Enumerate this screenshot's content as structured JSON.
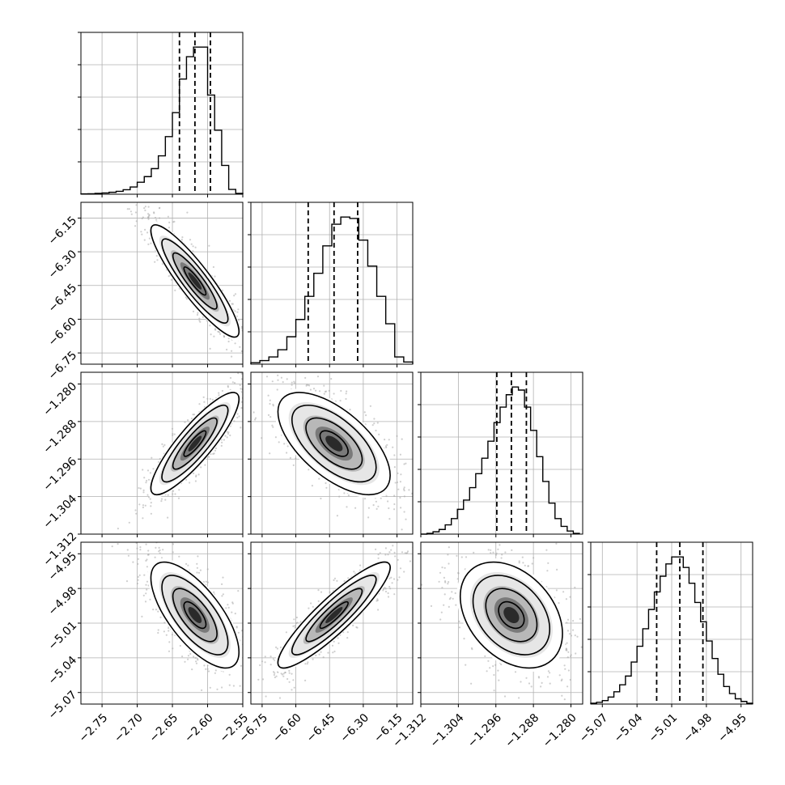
{
  "chart_data": {
    "type": "corner",
    "parameters": [
      {
        "range": [
          -2.78,
          -2.55
        ],
        "ticks": [
          "−2.75",
          "−2.70",
          "−2.65",
          "−2.60",
          "−2.55"
        ],
        "tick_values": [
          -2.75,
          -2.7,
          -2.65,
          -2.6,
          -2.55
        ],
        "quantiles": [
          -2.64,
          -2.618,
          -2.596
        ],
        "hist": {
          "edges": [
            -2.78,
            -2.77,
            -2.76,
            -2.75,
            -2.74,
            -2.73,
            -2.72,
            -2.71,
            -2.7,
            -2.69,
            -2.68,
            -2.67,
            -2.66,
            -2.65,
            -2.64,
            -2.63,
            -2.62,
            -2.61,
            -2.6,
            -2.59,
            -2.58,
            -2.57,
            -2.56,
            -2.55
          ],
          "values": [
            0.2,
            0.3,
            0.5,
            0.8,
            1.2,
            1.8,
            2.8,
            4.5,
            7.5,
            11,
            16,
            24,
            36,
            51,
            72,
            86,
            92,
            92,
            62,
            40,
            18,
            3,
            0.5
          ]
        }
      },
      {
        "range": [
          -6.8,
          -6.08
        ],
        "ticks": [
          "−6.75",
          "−6.60",
          "−6.45",
          "−6.30",
          "−6.15"
        ],
        "tick_values": [
          -6.75,
          -6.6,
          -6.45,
          -6.3,
          -6.15
        ],
        "quantiles": [
          -6.545,
          -6.43,
          -6.325
        ],
        "hist": {
          "edges": [
            -6.8,
            -6.76,
            -6.72,
            -6.68,
            -6.64,
            -6.6,
            -6.56,
            -6.52,
            -6.48,
            -6.44,
            -6.4,
            -6.36,
            -6.32,
            -6.28,
            -6.24,
            -6.2,
            -6.16,
            -6.12,
            -6.08
          ],
          "values": [
            1,
            2.5,
            5,
            10,
            19,
            31,
            47,
            63,
            82,
            97,
            102,
            101,
            86,
            68,
            47,
            28,
            5,
            1.5
          ]
        }
      },
      {
        "range": [
          -1.312,
          -1.2775
        ],
        "ticks": [
          "−1.312",
          "−1.304",
          "−1.296",
          "−1.288",
          "−1.280"
        ],
        "tick_values": [
          -1.312,
          -1.304,
          -1.296,
          -1.288,
          -1.28
        ],
        "quantiles": [
          -1.2958,
          -1.2927,
          -1.2895
        ],
        "hist": {
          "edges": [
            -1.312,
            -1.3107,
            -1.3094,
            -1.3081,
            -1.3068,
            -1.3055,
            -1.3042,
            -1.3029,
            -1.3016,
            -1.3003,
            -1.299,
            -1.2977,
            -1.2964,
            -1.2951,
            -1.2938,
            -1.2925,
            -1.2912,
            -1.2899,
            -1.2886,
            -1.2873,
            -1.286,
            -1.2847,
            -1.2834,
            -1.2821,
            -1.2808,
            -1.2795,
            -1.2782
          ],
          "values": [
            0,
            0.5,
            1.5,
            3,
            6,
            10,
            16,
            22,
            30,
            39,
            49,
            60,
            72,
            82,
            90,
            95,
            93,
            82,
            67,
            50,
            34,
            20,
            10,
            5,
            2,
            0.5
          ]
        }
      },
      {
        "range": [
          -5.08,
          -4.94
        ],
        "ticks": [
          "−5.07",
          "−5.04",
          "−5.01",
          "−4.98",
          "−4.95"
        ],
        "tick_values": [
          -5.07,
          -5.04,
          -5.01,
          -4.98,
          -4.95
        ],
        "quantiles": [
          -5.023,
          -5.003,
          -4.983
        ],
        "hist": {
          "edges": [
            -5.08,
            -5.075,
            -5.07,
            -5.065,
            -5.06,
            -5.055,
            -5.05,
            -5.045,
            -5.04,
            -5.035,
            -5.03,
            -5.025,
            -5.02,
            -5.015,
            -5.01,
            -5.005,
            -5.0,
            -4.995,
            -4.99,
            -4.985,
            -4.98,
            -4.975,
            -4.97,
            -4.965,
            -4.96,
            -4.955,
            -4.95,
            -4.945,
            -4.94
          ],
          "values": [
            0.5,
            1,
            2,
            4,
            7,
            11,
            16,
            24,
            33,
            43,
            54,
            64,
            73,
            80,
            84,
            84,
            78,
            69,
            58,
            47,
            36,
            26,
            17,
            10,
            6,
            3,
            1.5,
            0.5
          ]
        }
      }
    ],
    "pairs": [
      {
        "row": 1,
        "col": 0,
        "rho": -0.9
      },
      {
        "row": 2,
        "col": 0,
        "rho": 0.87
      },
      {
        "row": 2,
        "col": 1,
        "rho": -0.62
      },
      {
        "row": 3,
        "col": 0,
        "rho": -0.7
      },
      {
        "row": 3,
        "col": 1,
        "rho": 0.9
      },
      {
        "row": 3,
        "col": 2,
        "rho": -0.35
      }
    ],
    "contour_levels_sigma": [
      0.5,
      1.0,
      1.5,
      2.0
    ],
    "grid": true,
    "colors": {
      "line": "#000000",
      "grid": "#b0b0b0",
      "points": "#a8a8a8"
    }
  }
}
